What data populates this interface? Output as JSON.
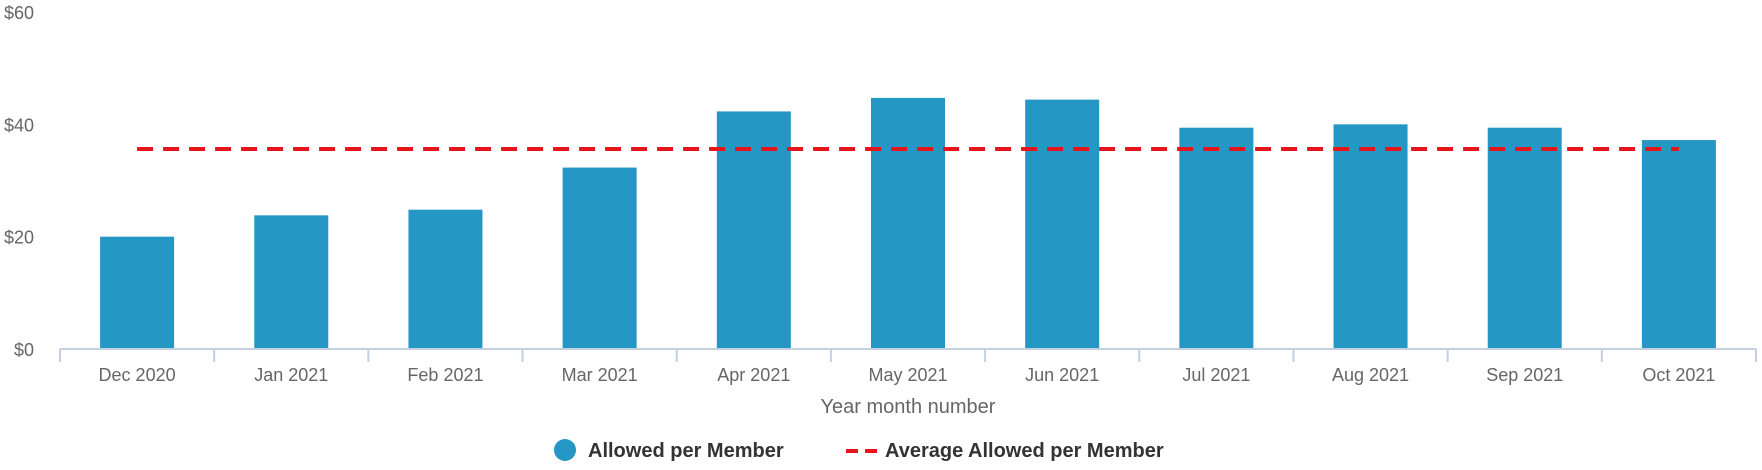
{
  "chart_data": {
    "type": "bar",
    "categories": [
      "Dec 2020",
      "Jan 2021",
      "Feb 2021",
      "Mar 2021",
      "Apr 2021",
      "May 2021",
      "Jun 2021",
      "Jul 2021",
      "Aug 2021",
      "Sep 2021",
      "Oct 2021"
    ],
    "series": [
      {
        "name": "Allowed per Member",
        "type": "bar",
        "color": "#2497c4",
        "values": [
          20,
          23.8,
          24.8,
          32.3,
          42.3,
          44.7,
          44.4,
          39.4,
          40,
          39.4,
          37.2
        ]
      },
      {
        "name": "Average Allowed per Member",
        "type": "line",
        "style": "dashed",
        "color": "#e8141c",
        "values": [
          35.6,
          35.6,
          35.6,
          35.6,
          35.6,
          35.6,
          35.6,
          35.6,
          35.6,
          35.6,
          35.6
        ]
      }
    ],
    "title": "",
    "xlabel": "Year month number",
    "ylabel": "",
    "ylim": [
      0,
      60
    ],
    "yticks": [
      0,
      20,
      40,
      60
    ],
    "ytick_labels": [
      "$0",
      "$20",
      "$40",
      "$60"
    ],
    "grid": false,
    "legend_placement": "bottom-center"
  }
}
